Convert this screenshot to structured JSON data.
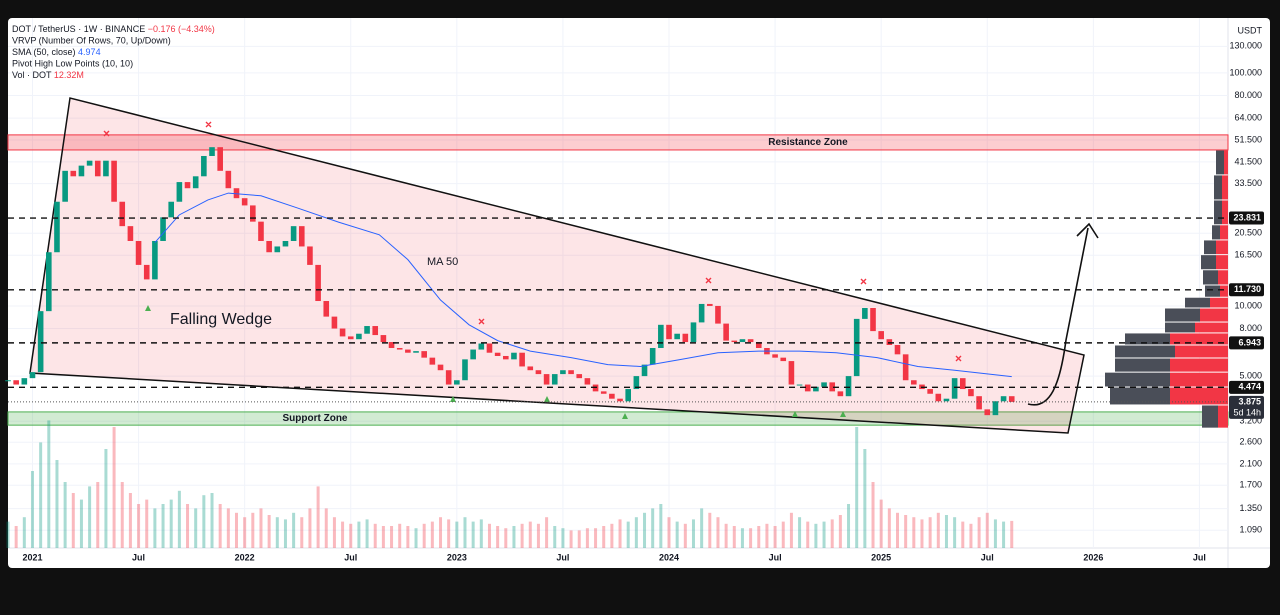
{
  "header": {
    "symbol": "DOT / TetherUS · 1W · BINANCE",
    "change": "−0.176 (−4.34%)",
    "vrvp": "VRVP (Number Of Rows, 70, Up/Down)",
    "sma": "SMA (50, close)",
    "sma_value": "4.974",
    "pivots": "Pivot High Low Points (10, 10)",
    "vol": "Vol · DOT",
    "vol_value": "12.32M"
  },
  "chart_data": {
    "type": "candlestick",
    "unit": "USDT",
    "log_scale": true,
    "grid": true,
    "up_color": "#089981",
    "down_color": "#f23645",
    "xlim": [
      -6,
      293
    ],
    "ylim": [
      0.915,
      172
    ],
    "xticks": [
      {
        "value": 0,
        "label": "2021"
      },
      {
        "value": 26,
        "label": "Jul"
      },
      {
        "value": 52,
        "label": "2022"
      },
      {
        "value": 78,
        "label": "Jul"
      },
      {
        "value": 104,
        "label": "2023"
      },
      {
        "value": 130,
        "label": "Jul"
      },
      {
        "value": 156,
        "label": "2024"
      },
      {
        "value": 182,
        "label": "Jul"
      },
      {
        "value": 208,
        "label": "2025"
      },
      {
        "value": 234,
        "label": "Jul"
      },
      {
        "value": 260,
        "label": "2026"
      },
      {
        "value": 286,
        "label": "Jul"
      }
    ],
    "yticks": [
      {
        "value": 130,
        "label": "130.000"
      },
      {
        "value": 100,
        "label": "100.000"
      },
      {
        "value": 80,
        "label": "80.000"
      },
      {
        "value": 64,
        "label": "64.000"
      },
      {
        "value": 51.5,
        "label": "51.500"
      },
      {
        "value": 41.5,
        "label": "41.500"
      },
      {
        "value": 33.5,
        "label": "33.500"
      },
      {
        "value": 20.5,
        "label": "20.500"
      },
      {
        "value": 16.5,
        "label": "16.500"
      },
      {
        "value": 10,
        "label": "10.000"
      },
      {
        "value": 8,
        "label": "8.000"
      },
      {
        "value": 5,
        "label": "5.000"
      },
      {
        "value": 3.2,
        "label": "3.200"
      },
      {
        "value": 2.6,
        "label": "2.600"
      },
      {
        "value": 2.1,
        "label": "2.100"
      },
      {
        "value": 1.7,
        "label": "1.700"
      },
      {
        "value": 1.35,
        "label": "1.350"
      },
      {
        "value": 1.09,
        "label": "1.090"
      }
    ],
    "x": [
      -6,
      -4,
      -2,
      0,
      2,
      4,
      6,
      8,
      10,
      12,
      14,
      16,
      18,
      20,
      22,
      24,
      26,
      28,
      30,
      32,
      34,
      36,
      38,
      40,
      42,
      44,
      46,
      48,
      50,
      52,
      54,
      56,
      58,
      60,
      62,
      64,
      66,
      68,
      70,
      72,
      74,
      76,
      78,
      80,
      82,
      84,
      86,
      88,
      90,
      92,
      94,
      96,
      98,
      100,
      102,
      104,
      106,
      108,
      110,
      112,
      114,
      116,
      118,
      120,
      122,
      124,
      126,
      128,
      130,
      132,
      134,
      136,
      138,
      140,
      142,
      144,
      146,
      148,
      150,
      152,
      154,
      156,
      158,
      160,
      162,
      164,
      166,
      168,
      170,
      172,
      174,
      176,
      178,
      180,
      182,
      184,
      186,
      188,
      190,
      192,
      194,
      196,
      198,
      200,
      202,
      204,
      206,
      208,
      210,
      212,
      214,
      216,
      218,
      220,
      222,
      224,
      226,
      228,
      230,
      232,
      234,
      236,
      238,
      240
    ],
    "values": [
      4.8,
      4.6,
      4.9,
      5.2,
      9.5,
      17,
      28,
      38,
      36,
      40,
      42,
      36,
      42,
      28,
      22,
      19,
      15,
      13,
      19,
      24,
      28,
      34,
      32,
      36,
      44,
      48,
      38,
      32,
      29,
      27,
      23,
      19,
      17,
      18,
      19,
      22,
      18,
      15,
      10.5,
      9,
      8,
      7.4,
      7.2,
      7.6,
      8.2,
      7.5,
      7.0,
      6.6,
      6.5,
      6.3,
      6.4,
      6.0,
      5.6,
      5.3,
      4.6,
      4.8,
      5.9,
      6.5,
      6.9,
      6.3,
      6.1,
      5.9,
      6.3,
      5.5,
      5.3,
      5.1,
      4.6,
      5.1,
      5.3,
      5.1,
      4.9,
      4.6,
      4.3,
      4.2,
      4.0,
      3.9,
      4.4,
      5.0,
      5.6,
      6.6,
      8.3,
      7.2,
      7.6,
      7.0,
      8.5,
      10.2,
      10.0,
      8.4,
      7.1,
      7.0,
      7.2,
      7.0,
      6.6,
      6.2,
      6.0,
      5.8,
      4.6,
      4.6,
      4.3,
      4.5,
      4.7,
      4.3,
      4.1,
      5.0,
      8.8,
      9.8,
      7.8,
      7.2,
      6.8,
      6.2,
      4.8,
      4.6,
      4.4,
      4.2,
      3.9,
      4.0,
      4.9,
      4.4,
      4.1,
      3.6,
      3.4,
      3.9,
      4.1,
      3.875
    ],
    "volume": {
      "values": [
        12,
        10,
        14,
        35,
        48,
        58,
        40,
        30,
        25,
        22,
        28,
        30,
        45,
        55,
        30,
        25,
        20,
        22,
        18,
        20,
        22,
        26,
        20,
        18,
        24,
        25,
        20,
        18,
        16,
        14,
        16,
        18,
        15,
        14,
        13,
        16,
        14,
        18,
        28,
        18,
        14,
        12,
        11,
        12,
        13,
        11,
        10,
        10,
        11,
        10,
        9,
        11,
        12,
        14,
        13,
        12,
        14,
        12,
        13,
        11,
        10,
        9,
        10,
        11,
        12,
        11,
        14,
        10,
        9,
        8,
        8,
        9,
        9,
        10,
        11,
        13,
        12,
        14,
        16,
        18,
        20,
        14,
        12,
        11,
        13,
        18,
        16,
        14,
        11,
        10,
        9,
        9,
        10,
        11,
        10,
        12,
        16,
        14,
        12,
        11,
        12,
        13,
        15,
        20,
        55,
        45,
        30,
        22,
        18,
        16,
        15,
        14,
        13,
        14,
        16,
        15,
        14,
        12,
        11,
        14,
        16,
        13,
        12,
        12.32
      ]
    },
    "ma": {
      "name": "MA 50",
      "color": "#2962ff",
      "x": [
        30,
        36,
        43,
        48,
        56,
        65,
        75,
        85,
        92,
        100,
        107,
        114,
        122,
        132,
        141,
        149,
        159,
        168,
        178,
        188,
        197,
        207,
        217,
        226,
        240
      ],
      "values": [
        18.7,
        24.6,
        28.5,
        30.5,
        29.7,
        26.3,
        22.9,
        20.2,
        15.8,
        10.6,
        8.3,
        7.1,
        6.4,
        6.0,
        5.6,
        5.5,
        5.9,
        6.3,
        6.4,
        6.4,
        6.3,
        6.0,
        5.5,
        5.3,
        4.974
      ]
    },
    "volume_profile": [
      {
        "price_low": 2.99,
        "price_high": 3.76,
        "down": 16,
        "up": 10
      },
      {
        "price_low": 3.76,
        "price_high": 4.49,
        "down": 60,
        "up": 58
      },
      {
        "price_low": 4.49,
        "price_high": 5.2,
        "down": 65,
        "up": 58
      },
      {
        "price_low": 5.2,
        "price_high": 5.98,
        "down": 55,
        "up": 58
      },
      {
        "price_low": 5.98,
        "price_high": 6.8,
        "down": 60,
        "up": 53
      },
      {
        "price_low": 6.8,
        "price_high": 7.66,
        "down": 45,
        "up": 58
      },
      {
        "price_low": 7.66,
        "price_high": 8.53,
        "down": 30,
        "up": 33
      },
      {
        "price_low": 8.53,
        "price_high": 9.8,
        "down": 35,
        "up": 28
      },
      {
        "price_low": 9.8,
        "price_high": 10.9,
        "down": 25,
        "up": 18
      },
      {
        "price_low": 10.9,
        "price_high": 12.3,
        "down": 15,
        "up": 8
      },
      {
        "price_low": 12.3,
        "price_high": 14.3,
        "down": 15,
        "up": 10
      },
      {
        "price_low": 14.3,
        "price_high": 16.6,
        "down": 15,
        "up": 12
      },
      {
        "price_low": 16.6,
        "price_high": 19.2,
        "down": 12,
        "up": 12
      },
      {
        "price_low": 19.2,
        "price_high": 22.3,
        "down": 8,
        "up": 8
      },
      {
        "price_low": 22.3,
        "price_high": 28.5,
        "down": 8,
        "up": 6
      },
      {
        "price_low": 28.5,
        "price_high": 36.5,
        "down": 8,
        "up": 6
      },
      {
        "price_low": 36.5,
        "price_high": 46.7,
        "down": 8,
        "up": 4
      }
    ],
    "levels": [
      23.831,
      {
        "value": 11.73,
        "label": "11.730"
      },
      6.943,
      4.474
    ],
    "last_price": {
      "value": 3.875,
      "countdown": "5d 14h"
    },
    "zones": [
      {
        "label": "Resistance Zone",
        "range": [
          46.7,
          54.2
        ],
        "color": "#f23645"
      },
      {
        "label": "Support Zone",
        "range": [
          3.08,
          3.51
        ],
        "color": "#4caf50"
      }
    ],
    "annotations": [
      "Falling Wedge",
      "MA 50"
    ]
  }
}
